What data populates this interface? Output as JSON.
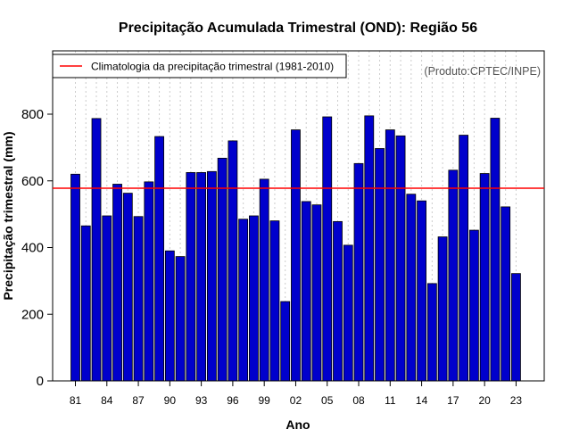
{
  "chart_data": {
    "type": "bar",
    "title": "Precipitação Acumulada Trimestral (OND): Região 56",
    "xlabel": "Ano",
    "ylabel": "Precipitação trimestral (mm)",
    "source_note": "(Produto:CPTEC/INPE)",
    "legend": {
      "label": "Climatologia da precipitação trimestral (1981-2010)",
      "placement": "top-left"
    },
    "climatology": 578,
    "ylim": [
      0,
      990
    ],
    "yticks": [
      0,
      200,
      400,
      600,
      800
    ],
    "years": [
      1981,
      1982,
      1983,
      1984,
      1985,
      1986,
      1987,
      1988,
      1989,
      1990,
      1991,
      1992,
      1993,
      1994,
      1995,
      1996,
      1997,
      1998,
      1999,
      2000,
      2001,
      2002,
      2003,
      2004,
      2005,
      2006,
      2007,
      2008,
      2009,
      2010,
      2011,
      2012,
      2013,
      2014,
      2015,
      2016,
      2017,
      2018,
      2019,
      2020,
      2021,
      2022,
      2023
    ],
    "values": [
      620,
      465,
      787,
      495,
      590,
      563,
      493,
      597,
      733,
      390,
      373,
      625,
      625,
      628,
      668,
      720,
      485,
      495,
      605,
      480,
      238,
      753,
      538,
      528,
      792,
      478,
      407,
      652,
      795,
      697,
      753,
      735,
      560,
      540,
      292,
      432,
      632,
      737,
      452,
      622,
      788,
      522,
      322
    ],
    "xtick_labels": [
      {
        "year": 1981,
        "label": "81"
      },
      {
        "year": 1984,
        "label": "84"
      },
      {
        "year": 1987,
        "label": "87"
      },
      {
        "year": 1990,
        "label": "90"
      },
      {
        "year": 1993,
        "label": "93"
      },
      {
        "year": 1996,
        "label": "96"
      },
      {
        "year": 1999,
        "label": "99"
      },
      {
        "year": 2002,
        "label": "02"
      },
      {
        "year": 2005,
        "label": "05"
      },
      {
        "year": 2008,
        "label": "08"
      },
      {
        "year": 2011,
        "label": "11"
      },
      {
        "year": 2014,
        "label": "14"
      },
      {
        "year": 2017,
        "label": "17"
      },
      {
        "year": 2020,
        "label": "20"
      },
      {
        "year": 2023,
        "label": "23"
      }
    ],
    "colors": {
      "bar": "#0000cc",
      "climatology_line": "#ff0000",
      "grid": "#cccccc"
    }
  }
}
